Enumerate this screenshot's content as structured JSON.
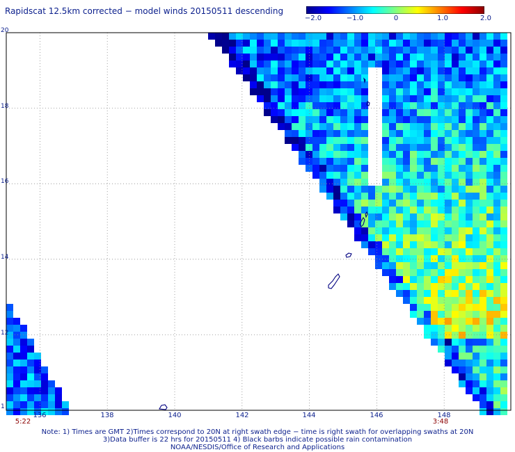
{
  "title": "Rapidscat 12.5km corrected − model winds 20150511 descending",
  "colorbar": {
    "labels": [
      "−2.0",
      "−1.0",
      "0",
      "1.0",
      "2.0"
    ],
    "values": [
      -2.0,
      -1.0,
      0,
      1.0,
      2.0
    ],
    "colors": [
      "#00008b",
      "#0000ff",
      "#0080ff",
      "#00ffff",
      "#80ff80",
      "#ffff00",
      "#ff8000",
      "#ff0000",
      "#8b0000"
    ]
  },
  "map": {
    "lat_labels": [
      "20",
      "18",
      "16",
      "14",
      "12",
      "1"
    ],
    "lon_labels": [
      "136",
      "138",
      "140",
      "142",
      "144",
      "146",
      "148"
    ],
    "lat_range": [
      10,
      20
    ],
    "lon_range": [
      135,
      150
    ],
    "grid": true,
    "grid_color": "#8a8a8a",
    "coast_color": "#000080"
  },
  "times": [
    "5:22",
    "3:48"
  ],
  "notes": [
    "Note: 1) Times are GMT 2)Times correspond to 20N at right swath edge − time is right swath for overlapping swaths at 20N",
    "3)Data buffer is 22 hrs for 20150511 4) Black barbs indicate possible rain contamination",
    "NOAA/NESDIS/Office of Research and Applications"
  ]
}
